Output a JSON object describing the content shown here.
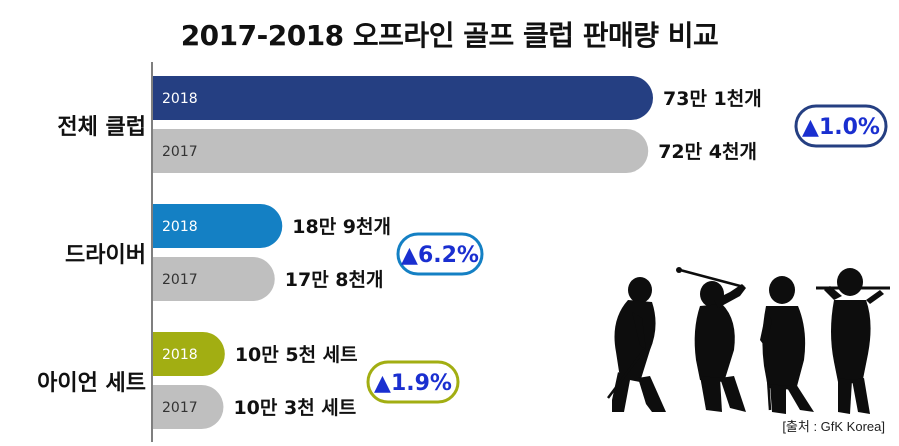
{
  "chart_data": {
    "type": "bar",
    "title": "2017-2018 오프라인 골프 클럽 판매량 비교",
    "source": "[출처 : GfK Korea]",
    "categories": [
      "전체 클럽",
      "드라이버",
      "아이언 세트"
    ],
    "series": [
      {
        "name": "2018",
        "values": [
          731000,
          189000,
          105000
        ],
        "value_labels": [
          "73만 1천개",
          "18만 9천개",
          "10만 5천 세트"
        ]
      },
      {
        "name": "2017",
        "values": [
          724000,
          178000,
          103000
        ],
        "value_labels": [
          "72만 4천개",
          "17만 8천개",
          "10만 3천 세트"
        ]
      }
    ],
    "annotations": [
      {
        "category": "전체 클럽",
        "text": "▲1.0%"
      },
      {
        "category": "드라이버",
        "text": "▲6.2%"
      },
      {
        "category": "아이언 세트",
        "text": "▲1.9%"
      }
    ],
    "colors": {
      "2018": [
        "#253f82",
        "#1480c4",
        "#a2ae12"
      ],
      "2017": "#bfbfbf",
      "badge_border": [
        "#253f82",
        "#1480c4",
        "#a2ae12"
      ],
      "badge_text": "#1a2fd0"
    },
    "grid": false,
    "legend": "none"
  }
}
